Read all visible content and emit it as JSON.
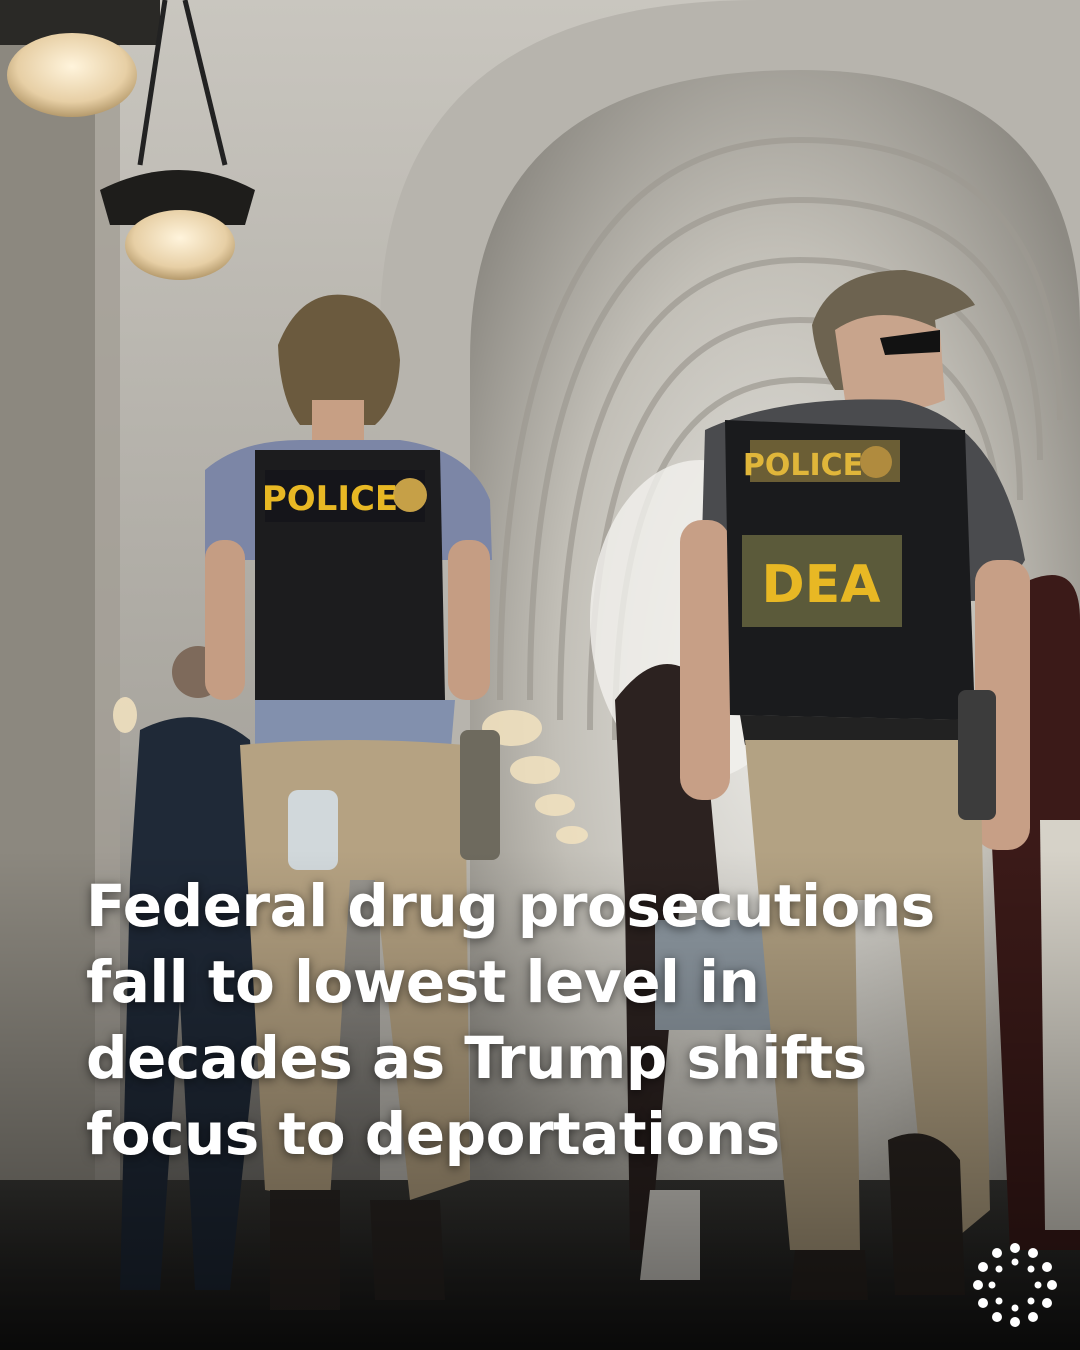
{
  "headline": {
    "lines": [
      "Federal drug prosecutions",
      "fall to lowest level in",
      "decades as Trump shifts",
      "focus to deportations"
    ]
  },
  "photo": {
    "left_vest": {
      "label": "POLICE"
    },
    "right_vest": {
      "top_label": "POLICE",
      "back_label": "DEA"
    }
  },
  "colors": {
    "background": "#111111",
    "headline": "#ffffff",
    "vest_text": "#e8b824",
    "khaki": "#b5a282"
  },
  "icons": {
    "logo": "reuters-dot-ring-icon"
  }
}
